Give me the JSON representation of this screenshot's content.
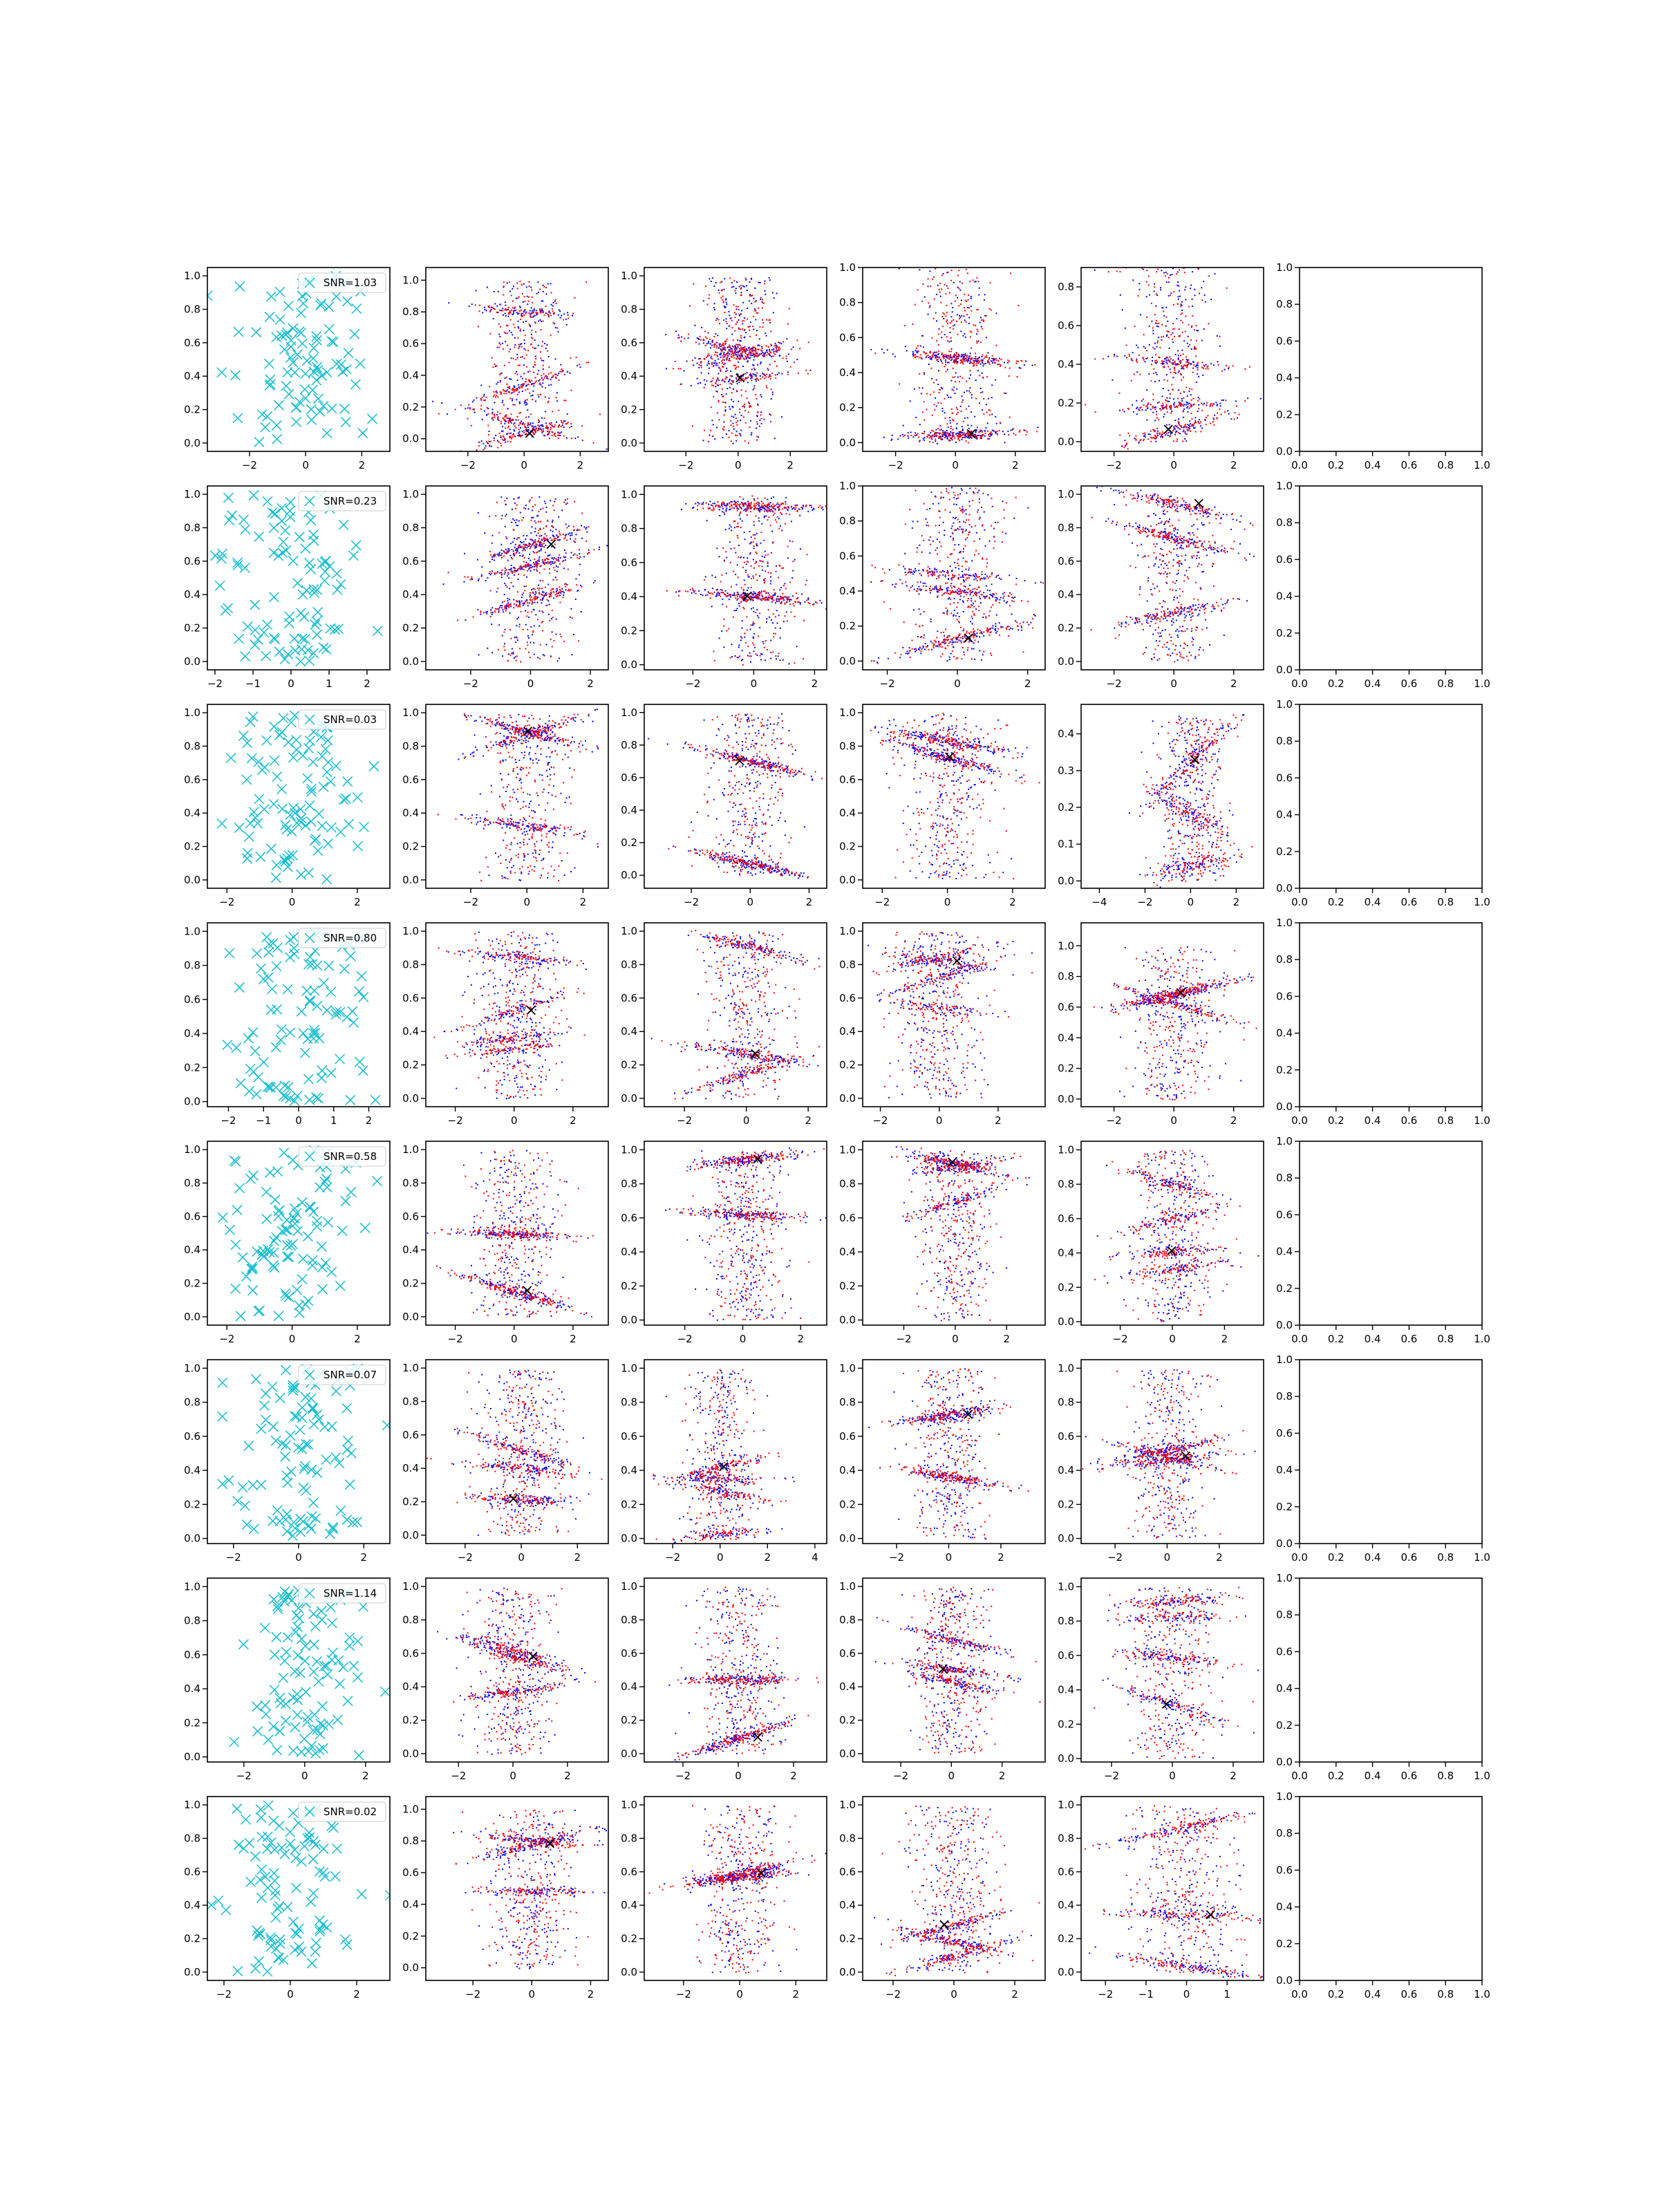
{
  "chart_data": {
    "type": "scatter",
    "grid": false,
    "legend_placement": "upper right",
    "colors": {
      "cyan": "#17becf",
      "blue": "#0000ff",
      "red": "#ff0000",
      "black": "#000000"
    },
    "rows": [
      {
        "snr_label": "SNR=1.03",
        "xlims": [
          [
            -3.5,
            3.0
          ],
          [
            -3.5,
            3.0
          ],
          [
            -3.6,
            3.4
          ],
          [
            -3.1,
            3.0
          ],
          [
            -3.1,
            3.0
          ]
        ],
        "xticks": [
          [
            -2,
            0,
            2
          ],
          [
            -2,
            0,
            2
          ],
          [
            -2,
            0,
            2
          ],
          [
            -2,
            0,
            2
          ],
          [
            -2,
            0,
            2
          ]
        ],
        "ylims": [
          [
            -0.05,
            1.05
          ],
          [
            -0.08,
            1.08
          ],
          [
            -0.05,
            1.05
          ],
          [
            -0.05,
            1.0
          ],
          [
            -0.05,
            0.9
          ]
        ],
        "yticks": [
          [
            0.0,
            0.2,
            0.4,
            0.6,
            0.8,
            1.0
          ],
          [
            0.0,
            0.2,
            0.4,
            0.6,
            0.8,
            1.0
          ],
          [
            0.0,
            0.2,
            0.4,
            0.6,
            0.8,
            1.0
          ],
          [
            0.0,
            0.2,
            0.4,
            0.6,
            0.8,
            1.0
          ],
          [
            0.0,
            0.2,
            0.4,
            0.6,
            0.8
          ]
        ]
      },
      {
        "snr_label": "SNR=0.23",
        "xlims": [
          [
            -2.2,
            2.6
          ],
          [
            -3.5,
            2.6
          ],
          [
            -3.6,
            2.4
          ],
          [
            -2.7,
            2.5
          ],
          [
            -3.1,
            3.0
          ]
        ],
        "xticks": [
          [
            -2,
            -1,
            0,
            1,
            2
          ],
          [
            -2,
            0,
            2
          ],
          [
            -2,
            0,
            2
          ],
          [
            -2,
            0,
            2
          ],
          [
            -2,
            0,
            2
          ]
        ],
        "ylims": [
          [
            -0.05,
            1.05
          ],
          [
            -0.05,
            1.05
          ],
          [
            -0.03,
            1.05
          ],
          [
            -0.05,
            1.0
          ],
          [
            -0.05,
            1.05
          ]
        ],
        "yticks": [
          [
            0.0,
            0.2,
            0.4,
            0.6,
            0.8,
            1.0
          ],
          [
            0.0,
            0.2,
            0.4,
            0.6,
            0.8,
            1.0
          ],
          [
            0.0,
            0.2,
            0.4,
            0.6,
            0.8,
            1.0
          ],
          [
            0.0,
            0.2,
            0.4,
            0.6,
            0.8,
            1.0
          ],
          [
            0.0,
            0.2,
            0.4,
            0.6,
            0.8,
            1.0
          ]
        ]
      },
      {
        "snr_label": "SNR=0.03",
        "xlims": [
          [
            -2.6,
            3.0
          ],
          [
            -3.6,
            2.9
          ],
          [
            -3.6,
            2.6
          ],
          [
            -2.6,
            3.0
          ],
          [
            -4.8,
            3.2
          ]
        ],
        "xticks": [
          [
            -2,
            0,
            2
          ],
          [
            -2,
            0,
            2
          ],
          [
            -2,
            0,
            2
          ],
          [
            -2,
            0,
            2
          ],
          [
            -4,
            -2,
            0,
            2
          ]
        ],
        "ylims": [
          [
            -0.05,
            1.05
          ],
          [
            -0.05,
            1.05
          ],
          [
            -0.08,
            1.05
          ],
          [
            -0.05,
            1.05
          ],
          [
            -0.02,
            0.48
          ]
        ],
        "yticks": [
          [
            0.0,
            0.2,
            0.4,
            0.6,
            0.8,
            1.0
          ],
          [
            0.0,
            0.2,
            0.4,
            0.6,
            0.8,
            1.0
          ],
          [
            0.0,
            0.2,
            0.4,
            0.6,
            0.8,
            1.0
          ],
          [
            0.0,
            0.2,
            0.4,
            0.6,
            0.8,
            1.0
          ],
          [
            0.0,
            0.1,
            0.2,
            0.3,
            0.4
          ]
        ]
      },
      {
        "snr_label": "SNR=0.80",
        "xlims": [
          [
            -2.6,
            2.6
          ],
          [
            -3.0,
            3.2
          ],
          [
            -3.3,
            2.6
          ],
          [
            -2.6,
            3.6
          ],
          [
            -3.1,
            3.0
          ]
        ],
        "xticks": [
          [
            -2,
            -1,
            0,
            1,
            2
          ],
          [
            -2,
            0,
            2
          ],
          [
            -2,
            0,
            2
          ],
          [
            -2,
            0,
            2
          ],
          [
            -2,
            0,
            2
          ]
        ],
        "ylims": [
          [
            -0.03,
            1.05
          ],
          [
            -0.05,
            1.05
          ],
          [
            -0.05,
            1.05
          ],
          [
            -0.05,
            1.05
          ],
          [
            -0.05,
            1.15
          ]
        ],
        "yticks": [
          [
            0.0,
            0.2,
            0.4,
            0.6,
            0.8,
            1.0
          ],
          [
            0.0,
            0.2,
            0.4,
            0.6,
            0.8,
            1.0
          ],
          [
            0.0,
            0.2,
            0.4,
            0.6,
            0.8,
            1.0
          ],
          [
            0.0,
            0.2,
            0.4,
            0.6,
            0.8,
            1.0
          ],
          [
            0.0,
            0.2,
            0.4,
            0.6,
            0.8,
            1.0
          ]
        ]
      },
      {
        "snr_label": "SNR=0.58",
        "xlims": [
          [
            -2.6,
            3.0
          ],
          [
            -3.0,
            3.2
          ],
          [
            -3.4,
            2.9
          ],
          [
            -3.6,
            3.5
          ],
          [
            -3.5,
            3.5
          ]
        ],
        "xticks": [
          [
            -2,
            0,
            2
          ],
          [
            -2,
            0,
            2
          ],
          [
            -2,
            0,
            2
          ],
          [
            -2,
            0,
            2
          ],
          [
            -2,
            0,
            2
          ]
        ],
        "ylims": [
          [
            -0.05,
            1.05
          ],
          [
            -0.05,
            1.05
          ],
          [
            -0.03,
            1.05
          ],
          [
            -0.03,
            1.05
          ],
          [
            -0.02,
            1.05
          ]
        ],
        "yticks": [
          [
            0.0,
            0.2,
            0.4,
            0.6,
            0.8,
            1.0
          ],
          [
            0.0,
            0.2,
            0.4,
            0.6,
            0.8,
            1.0
          ],
          [
            0.0,
            0.2,
            0.4,
            0.6,
            0.8,
            1.0
          ],
          [
            0.0,
            0.2,
            0.4,
            0.6,
            0.8,
            1.0
          ],
          [
            0.0,
            0.2,
            0.4,
            0.6,
            0.8,
            1.0
          ]
        ]
      },
      {
        "snr_label": "SNR=0.07",
        "xlims": [
          [
            -2.8,
            2.8
          ],
          [
            -3.4,
            3.1
          ],
          [
            -3.2,
            4.5
          ],
          [
            -3.3,
            3.7
          ],
          [
            -3.3,
            3.7
          ]
        ],
        "xticks": [
          [
            -2,
            0,
            2
          ],
          [
            -2,
            0,
            2
          ],
          [
            -2,
            0,
            2,
            4
          ],
          [
            -2,
            0,
            2
          ],
          [
            -2,
            0,
            2
          ]
        ],
        "ylims": [
          [
            -0.03,
            1.05
          ],
          [
            -0.05,
            1.05
          ],
          [
            -0.03,
            1.05
          ],
          [
            -0.03,
            1.05
          ],
          [
            -0.03,
            1.05
          ]
        ],
        "yticks": [
          [
            0.0,
            0.2,
            0.4,
            0.6,
            0.8,
            1.0
          ],
          [
            0.0,
            0.2,
            0.4,
            0.6,
            0.8,
            1.0
          ],
          [
            0.0,
            0.2,
            0.4,
            0.6,
            0.8,
            1.0
          ],
          [
            0.0,
            0.2,
            0.4,
            0.6,
            0.8,
            1.0
          ],
          [
            0.0,
            0.2,
            0.4,
            0.6,
            0.8,
            1.0
          ]
        ]
      },
      {
        "snr_label": "SNR=1.14",
        "xlims": [
          [
            -3.2,
            2.8
          ],
          [
            -3.2,
            3.5
          ],
          [
            -3.4,
            3.2
          ],
          [
            -3.5,
            3.7
          ],
          [
            -3.0,
            3.0
          ]
        ],
        "xticks": [
          [
            -2,
            0,
            2
          ],
          [
            -2,
            0,
            2
          ],
          [
            -2,
            0,
            2
          ],
          [
            -2,
            0,
            2
          ],
          [
            -2,
            0,
            2
          ]
        ],
        "ylims": [
          [
            -0.03,
            1.05
          ],
          [
            -0.05,
            1.05
          ],
          [
            -0.05,
            1.05
          ],
          [
            -0.05,
            1.05
          ],
          [
            -0.02,
            1.05
          ]
        ],
        "yticks": [
          [
            0.0,
            0.2,
            0.4,
            0.6,
            0.8,
            1.0
          ],
          [
            0.0,
            0.2,
            0.4,
            0.6,
            0.8,
            1.0
          ],
          [
            0.0,
            0.2,
            0.4,
            0.6,
            0.8,
            1.0
          ],
          [
            0.0,
            0.2,
            0.4,
            0.6,
            0.8,
            1.0
          ],
          [
            0.0,
            0.2,
            0.4,
            0.6,
            0.8,
            1.0
          ]
        ]
      },
      {
        "snr_label": "SNR=0.02",
        "xlims": [
          [
            -2.5,
            3.0
          ],
          [
            -3.6,
            2.6
          ],
          [
            -3.4,
            3.1
          ],
          [
            -3.0,
            3.0
          ],
          [
            -2.6,
            1.9
          ]
        ],
        "xticks": [
          [
            -2,
            0,
            2
          ],
          [
            -2,
            0,
            2
          ],
          [
            -2,
            0,
            2
          ],
          [
            -2,
            0,
            2
          ],
          [
            -2,
            -1,
            0,
            1
          ]
        ],
        "ylims": [
          [
            -0.05,
            1.05
          ],
          [
            -0.08,
            1.08
          ],
          [
            -0.05,
            1.05
          ],
          [
            -0.05,
            1.05
          ],
          [
            -0.05,
            1.05
          ]
        ],
        "yticks": [
          [
            0.0,
            0.2,
            0.4,
            0.6,
            0.8,
            1.0
          ],
          [
            0.0,
            0.2,
            0.4,
            0.6,
            0.8,
            1.0
          ],
          [
            0.0,
            0.2,
            0.4,
            0.6,
            0.8,
            1.0
          ],
          [
            0.0,
            0.2,
            0.4,
            0.6,
            0.8,
            1.0
          ],
          [
            0.0,
            0.2,
            0.4,
            0.6,
            0.8,
            1.0
          ]
        ]
      }
    ],
    "empty_panel_xticks": [
      0.0,
      0.2,
      0.4,
      0.6,
      0.8,
      1.0
    ],
    "empty_panel_yticks": [
      0.0,
      0.2,
      0.4,
      0.6,
      0.8,
      1.0
    ]
  }
}
